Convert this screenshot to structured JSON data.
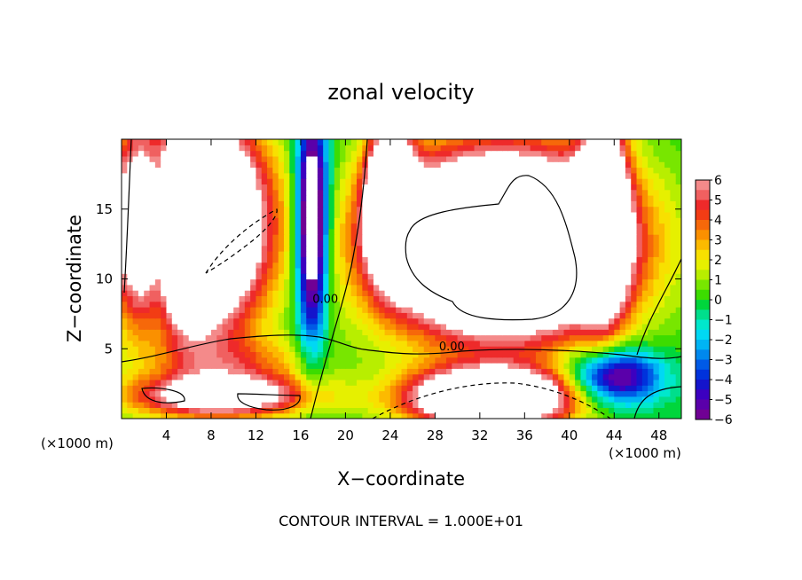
{
  "chart_data": {
    "type": "heatmap",
    "title": "zonal velocity",
    "xlabel": "X−coordinate",
    "ylabel": "Z−coordinate",
    "x_unit_label": "(×1000 m)",
    "y_unit_label": "(×1000 m)",
    "footer": "CONTOUR INTERVAL = 1.000E+01",
    "xlim": [
      0,
      50
    ],
    "ylim": [
      0,
      20
    ],
    "x_ticks": [
      "4",
      "8",
      "12",
      "16",
      "20",
      "24",
      "28",
      "32",
      "36",
      "40",
      "44",
      "48"
    ],
    "x_tick_values": [
      4,
      8,
      12,
      16,
      20,
      24,
      28,
      32,
      36,
      40,
      44,
      48
    ],
    "y_ticks": [
      "5",
      "10",
      "15"
    ],
    "y_tick_values": [
      5,
      10,
      15
    ],
    "colorbar": {
      "min": -6,
      "max": 6,
      "labels": [
        "6",
        "5",
        "4",
        "3",
        "2",
        "1",
        "0",
        "−1",
        "−2",
        "−3",
        "−4",
        "−5",
        "−6"
      ],
      "label_values": [
        6,
        5,
        4,
        3,
        2,
        1,
        0,
        -1,
        -2,
        -3,
        -4,
        -5,
        -6
      ],
      "levels": [
        {
          "from": 5.5,
          "to": 6,
          "color": "#f48a8a"
        },
        {
          "from": 5,
          "to": 5.5,
          "color": "#f06060"
        },
        {
          "from": 4.5,
          "to": 5,
          "color": "#ee2a2a"
        },
        {
          "from": 4,
          "to": 4.5,
          "color": "#f23c14"
        },
        {
          "from": 3.5,
          "to": 4,
          "color": "#f6680a"
        },
        {
          "from": 3,
          "to": 3.5,
          "color": "#fa9000"
        },
        {
          "from": 2.5,
          "to": 3,
          "color": "#fcba00"
        },
        {
          "from": 2,
          "to": 2.5,
          "color": "#f8e000"
        },
        {
          "from": 1.5,
          "to": 2,
          "color": "#e6f000"
        },
        {
          "from": 1,
          "to": 1.5,
          "color": "#b8ee00"
        },
        {
          "from": 0.5,
          "to": 1,
          "color": "#78e600"
        },
        {
          "from": 0,
          "to": 0.5,
          "color": "#3cdc00"
        },
        {
          "from": -0.5,
          "to": 0,
          "color": "#00d63c"
        },
        {
          "from": -1,
          "to": -0.5,
          "color": "#00de8c"
        },
        {
          "from": -1.5,
          "to": -1,
          "color": "#00e8cc"
        },
        {
          "from": -2,
          "to": -1.5,
          "color": "#00d8f4"
        },
        {
          "from": -2.5,
          "to": -2,
          "color": "#00b4f4"
        },
        {
          "from": -3,
          "to": -2.5,
          "color": "#0088ee"
        },
        {
          "from": -3.5,
          "to": -3,
          "color": "#005ae6"
        },
        {
          "from": -4,
          "to": -3.5,
          "color": "#0032dc"
        },
        {
          "from": -4.5,
          "to": -4,
          "color": "#1414cc"
        },
        {
          "from": -5,
          "to": -4.5,
          "color": "#3c00c0"
        },
        {
          "from": -5.5,
          "to": -5,
          "color": "#5a00aa"
        },
        {
          "from": -6,
          "to": -5.5,
          "color": "#700094"
        }
      ]
    },
    "contour_labels": [
      {
        "text": "0.00",
        "x": 29.5,
        "z": 4.9
      },
      {
        "text": "0.00",
        "x": 18.2,
        "z": 8.3
      }
    ],
    "grid": false,
    "legend": "colorbar-right",
    "field_features": [
      {
        "x": 6,
        "z": 14,
        "u": 20,
        "sx": 6,
        "sz": 7
      },
      {
        "x": 34,
        "z": 12.5,
        "u": 20,
        "sx": 10,
        "sz": 6
      },
      {
        "x": 33,
        "z": 1.5,
        "u": 14,
        "sx": 7,
        "sz": 2
      },
      {
        "x": 9,
        "z": 1.6,
        "u": 8,
        "sx": 8,
        "sz": 1.5
      },
      {
        "x": 3.5,
        "z": 14,
        "u": -9,
        "sx": 1.5,
        "sz": 6
      },
      {
        "x": 17,
        "z": 14,
        "u": -10,
        "sx": 1.4,
        "sz": 8
      },
      {
        "x": 24,
        "z": 16,
        "u": 12,
        "sx": 2,
        "sz": 5
      },
      {
        "x": 43,
        "z": 15,
        "u": 11,
        "sx": 2,
        "sz": 7
      },
      {
        "x": 44,
        "z": 3,
        "u": -7,
        "sx": 4,
        "sz": 2
      },
      {
        "x": 20,
        "z": 5,
        "u": 0,
        "sx": 2,
        "sz": 5
      },
      {
        "x": 10,
        "z": 4,
        "u": 3,
        "sx": 7,
        "sz": 2
      }
    ]
  }
}
